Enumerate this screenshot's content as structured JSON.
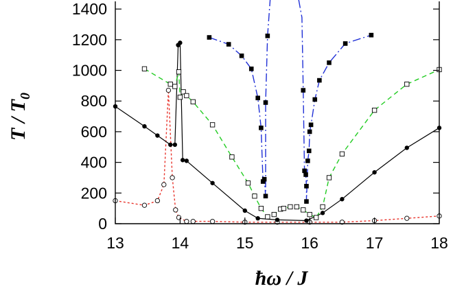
{
  "chart_data": {
    "type": "line",
    "xlabel": "ħω / J",
    "ylabel": "T / T0",
    "xlim": [
      13,
      18
    ],
    "ylim": [
      0,
      1450
    ],
    "x_ticks": [
      13,
      14,
      15,
      16,
      17,
      18
    ],
    "y_ticks": [
      0,
      200,
      400,
      600,
      800,
      1000,
      1200,
      1400
    ],
    "grid": false,
    "series": [
      {
        "marker": "open-circle",
        "line": "dotted",
        "color": "#e8342c",
        "points": [
          [
            13.0,
            150
          ],
          [
            13.45,
            120
          ],
          [
            13.65,
            150
          ],
          [
            13.75,
            255
          ],
          [
            13.82,
            870
          ],
          [
            13.88,
            300
          ],
          [
            13.93,
            90
          ],
          [
            13.98,
            40
          ],
          [
            14.1,
            15
          ],
          [
            14.2,
            15
          ],
          [
            14.5,
            15
          ],
          [
            15.0,
            10
          ],
          [
            15.5,
            10
          ],
          [
            16.0,
            10
          ],
          [
            16.5,
            10
          ],
          [
            17.0,
            20
          ],
          [
            17.5,
            35
          ],
          [
            18.0,
            50
          ]
        ]
      },
      {
        "marker": "filled-circle",
        "line": "solid",
        "color": "#000000",
        "points": [
          [
            13.0,
            765
          ],
          [
            13.45,
            635
          ],
          [
            13.65,
            575
          ],
          [
            13.85,
            515
          ],
          [
            13.92,
            515
          ],
          [
            13.97,
            1165
          ],
          [
            14.0,
            1180
          ],
          [
            14.04,
            415
          ],
          [
            14.1,
            410
          ],
          [
            14.5,
            265
          ],
          [
            15.0,
            85
          ],
          [
            15.2,
            35
          ],
          [
            15.5,
            25
          ],
          [
            15.95,
            20
          ],
          [
            16.2,
            70
          ],
          [
            16.5,
            160
          ],
          [
            17.0,
            335
          ],
          [
            17.5,
            495
          ],
          [
            18.0,
            625
          ]
        ]
      },
      {
        "marker": "open-square",
        "line": "dashed",
        "color": "#22cc22",
        "points": [
          [
            13.45,
            1010
          ],
          [
            13.85,
            910
          ],
          [
            13.92,
            895
          ],
          [
            13.98,
            990
          ],
          [
            14.0,
            825
          ],
          [
            14.05,
            860
          ],
          [
            14.1,
            835
          ],
          [
            14.2,
            795
          ],
          [
            14.5,
            645
          ],
          [
            14.8,
            435
          ],
          [
            15.05,
            265
          ],
          [
            15.15,
            180
          ],
          [
            15.25,
            100
          ],
          [
            15.35,
            45
          ],
          [
            15.45,
            60
          ],
          [
            15.55,
            95
          ],
          [
            15.6,
            100
          ],
          [
            15.7,
            110
          ],
          [
            15.8,
            110
          ],
          [
            15.9,
            90
          ],
          [
            16.0,
            60
          ],
          [
            16.1,
            40
          ],
          [
            16.2,
            110
          ],
          [
            16.3,
            300
          ],
          [
            16.5,
            455
          ],
          [
            17.0,
            740
          ],
          [
            17.5,
            910
          ],
          [
            18.0,
            1005
          ]
        ]
      },
      {
        "marker": "filled-square",
        "line": "dash-dot",
        "color": "#1f2fd6",
        "points": [
          [
            14.45,
            1215
          ],
          [
            14.75,
            1170
          ],
          [
            14.95,
            1095
          ],
          [
            15.1,
            1010
          ],
          [
            15.2,
            820
          ],
          [
            15.25,
            625
          ],
          [
            15.28,
            275
          ],
          [
            15.3,
            290
          ],
          [
            15.32,
            180
          ],
          [
            15.32,
            790
          ],
          [
            15.35,
            1225
          ],
          [
            15.9,
            870
          ],
          [
            15.92,
            345
          ],
          [
            15.94,
            320
          ],
          [
            15.95,
            245
          ],
          [
            15.95,
            145
          ],
          [
            15.97,
            410
          ],
          [
            15.99,
            475
          ],
          [
            16.0,
            600
          ],
          [
            16.02,
            645
          ],
          [
            16.08,
            810
          ],
          [
            16.15,
            935
          ],
          [
            16.3,
            1050
          ],
          [
            16.55,
            1175
          ],
          [
            16.95,
            1230
          ]
        ],
        "curve_left": [
          [
            14.45,
            1215
          ],
          [
            14.75,
            1170
          ],
          [
            14.95,
            1095
          ],
          [
            15.1,
            1010
          ],
          [
            15.2,
            820
          ],
          [
            15.25,
            625
          ],
          [
            15.28,
            275
          ],
          [
            15.3,
            290
          ],
          [
            15.32,
            180
          ],
          [
            15.32,
            790
          ],
          [
            15.35,
            1225
          ],
          [
            15.39,
            1460
          ]
        ],
        "curve_right": [
          [
            15.83,
            1460
          ],
          [
            15.88,
            1345
          ],
          [
            15.9,
            870
          ],
          [
            15.92,
            345
          ],
          [
            15.94,
            320
          ],
          [
            15.95,
            245
          ],
          [
            15.95,
            145
          ],
          [
            15.97,
            410
          ],
          [
            15.99,
            475
          ],
          [
            16.0,
            600
          ],
          [
            16.02,
            645
          ],
          [
            16.08,
            810
          ],
          [
            16.15,
            935
          ],
          [
            16.3,
            1050
          ],
          [
            16.55,
            1175
          ],
          [
            16.95,
            1230
          ]
        ]
      }
    ]
  }
}
